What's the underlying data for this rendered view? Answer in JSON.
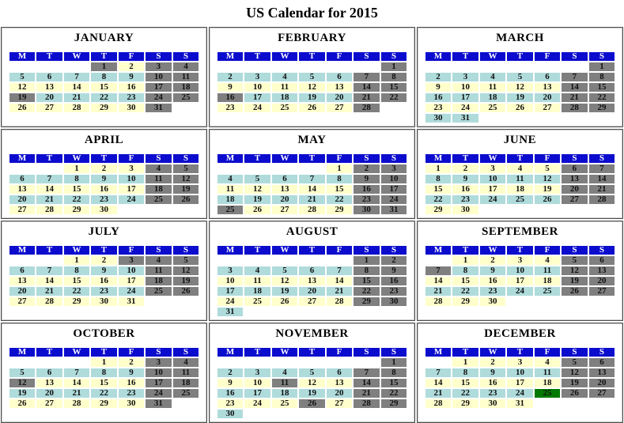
{
  "title": "US Calendar for 2015",
  "day_headers": [
    "M",
    "T",
    "W",
    "T",
    "F",
    "S",
    "S"
  ],
  "colors": {
    "weekday_header_bg": "#0c0cce",
    "weekday_header_text": "#ffffff",
    "week_row_pale_yellow": "#FFFFCC",
    "week_row_light_blue": "#AFDBDB",
    "weekend_holiday_bg": "#7F7F7F",
    "weekend_holiday_text": "#EDED12",
    "christmas_bg": "#007A00",
    "christmas_text": "#C03010",
    "day_text": "#111111"
  },
  "cell_styles": {
    "y": "pale-yellow-week",
    "b": "light-blue-week",
    "g": "weekend-or-holiday-gray",
    "x": "christmas-green",
    "e": "empty"
  },
  "months": [
    {
      "name": "JANUARY",
      "weeks": [
        [
          "",
          "",
          "",
          "1g",
          "2y",
          "3g",
          "4g"
        ],
        [
          "5b",
          "6b",
          "7b",
          "8b",
          "9b",
          "10g",
          "11g"
        ],
        [
          "12y",
          "13y",
          "14y",
          "15y",
          "16y",
          "17g",
          "18g"
        ],
        [
          "19g",
          "20b",
          "21b",
          "22b",
          "23b",
          "24g",
          "25g"
        ],
        [
          "26y",
          "27y",
          "28y",
          "29y",
          "30y",
          "31g",
          ""
        ]
      ]
    },
    {
      "name": "FEBRUARY",
      "weeks": [
        [
          "",
          "",
          "",
          "",
          "",
          "",
          "1g"
        ],
        [
          "2b",
          "3b",
          "4b",
          "5b",
          "6b",
          "7g",
          "8g"
        ],
        [
          "9y",
          "10y",
          "11y",
          "12y",
          "13y",
          "14g",
          "15g"
        ],
        [
          "16g",
          "17b",
          "18b",
          "19b",
          "20b",
          "21g",
          "22g"
        ],
        [
          "23y",
          "24y",
          "25y",
          "26y",
          "27y",
          "28g",
          ""
        ]
      ]
    },
    {
      "name": "MARCH",
      "weeks": [
        [
          "",
          "",
          "",
          "",
          "",
          "",
          "1g"
        ],
        [
          "2b",
          "3b",
          "4b",
          "5b",
          "6b",
          "7g",
          "8g"
        ],
        [
          "9y",
          "10y",
          "11y",
          "12y",
          "13y",
          "14g",
          "15g"
        ],
        [
          "16b",
          "17b",
          "18b",
          "19b",
          "20b",
          "21g",
          "22g"
        ],
        [
          "23y",
          "24y",
          "25y",
          "26y",
          "27y",
          "28g",
          "29g"
        ],
        [
          "30b",
          "31b",
          "",
          "",
          "",
          "",
          ""
        ]
      ]
    },
    {
      "name": "APRIL",
      "weeks": [
        [
          "",
          "",
          "1y",
          "2y",
          "3y",
          "4g",
          "5g"
        ],
        [
          "6b",
          "7b",
          "8b",
          "9b",
          "10b",
          "11g",
          "12g"
        ],
        [
          "13y",
          "14y",
          "15y",
          "16y",
          "17y",
          "18g",
          "19g"
        ],
        [
          "20b",
          "21b",
          "22b",
          "23b",
          "24b",
          "25g",
          "26g"
        ],
        [
          "27y",
          "28y",
          "29y",
          "30y",
          "",
          "",
          ""
        ]
      ]
    },
    {
      "name": "MAY",
      "weeks": [
        [
          "",
          "",
          "",
          "",
          "1y",
          "2g",
          "3g"
        ],
        [
          "4b",
          "5b",
          "6b",
          "7b",
          "8b",
          "9g",
          "10g"
        ],
        [
          "11y",
          "12y",
          "13y",
          "14y",
          "15y",
          "16g",
          "17g"
        ],
        [
          "18b",
          "19b",
          "20b",
          "21b",
          "22b",
          "23g",
          "24g"
        ],
        [
          "25g",
          "26y",
          "27y",
          "28y",
          "29y",
          "30g",
          "31g"
        ]
      ]
    },
    {
      "name": "JUNE",
      "weeks": [
        [
          "1y",
          "2y",
          "3y",
          "4y",
          "5y",
          "6g",
          "7g"
        ],
        [
          "8b",
          "9b",
          "10b",
          "11b",
          "12b",
          "13g",
          "14g"
        ],
        [
          "15y",
          "16y",
          "17y",
          "18y",
          "19y",
          "20g",
          "21g"
        ],
        [
          "22b",
          "23b",
          "24b",
          "25b",
          "26b",
          "27g",
          "28g"
        ],
        [
          "29y",
          "30y",
          "",
          "",
          "",
          "",
          ""
        ]
      ]
    },
    {
      "name": "JULY",
      "weeks": [
        [
          "",
          "",
          "1y",
          "2y",
          "3g",
          "4g",
          "5g"
        ],
        [
          "6b",
          "7b",
          "8b",
          "9b",
          "10b",
          "11g",
          "12g"
        ],
        [
          "13y",
          "14y",
          "15y",
          "16y",
          "17y",
          "18g",
          "19g"
        ],
        [
          "20b",
          "21b",
          "22b",
          "23b",
          "24b",
          "25g",
          "26g"
        ],
        [
          "27y",
          "28y",
          "29y",
          "30y",
          "31y",
          "",
          ""
        ]
      ]
    },
    {
      "name": "AUGUST",
      "weeks": [
        [
          "",
          "",
          "",
          "",
          "",
          "1g",
          "2g"
        ],
        [
          "3b",
          "4b",
          "5b",
          "6b",
          "7b",
          "8g",
          "9g"
        ],
        [
          "10y",
          "11y",
          "12y",
          "13y",
          "14y",
          "15g",
          "16g"
        ],
        [
          "17b",
          "18b",
          "19b",
          "20b",
          "21b",
          "22g",
          "23g"
        ],
        [
          "24y",
          "25y",
          "26y",
          "27y",
          "28y",
          "29g",
          "30g"
        ],
        [
          "31b",
          "",
          "",
          "",
          "",
          "",
          ""
        ]
      ]
    },
    {
      "name": "SEPTEMBER",
      "weeks": [
        [
          "",
          "1y",
          "2y",
          "3y",
          "4y",
          "5g",
          "6g"
        ],
        [
          "7g",
          "8b",
          "9b",
          "10b",
          "11b",
          "12g",
          "13g"
        ],
        [
          "14y",
          "15y",
          "16y",
          "17y",
          "18y",
          "19g",
          "20g"
        ],
        [
          "21b",
          "22b",
          "23b",
          "24b",
          "25b",
          "26g",
          "27g"
        ],
        [
          "28y",
          "29y",
          "30y",
          "",
          "",
          "",
          ""
        ]
      ]
    },
    {
      "name": "OCTOBER",
      "weeks": [
        [
          "",
          "",
          "",
          "1y",
          "2y",
          "3g",
          "4g"
        ],
        [
          "5b",
          "6b",
          "7b",
          "8b",
          "9b",
          "10g",
          "11g"
        ],
        [
          "12g",
          "13y",
          "14y",
          "15y",
          "16y",
          "17g",
          "18g"
        ],
        [
          "19b",
          "20b",
          "21b",
          "22b",
          "23b",
          "24g",
          "25g"
        ],
        [
          "26y",
          "27y",
          "28y",
          "29y",
          "30y",
          "31g",
          ""
        ]
      ]
    },
    {
      "name": "NOVEMBER",
      "weeks": [
        [
          "",
          "",
          "",
          "",
          "",
          "",
          "1g"
        ],
        [
          "2b",
          "3b",
          "4b",
          "5b",
          "6b",
          "7g",
          "8g"
        ],
        [
          "9y",
          "10y",
          "11g",
          "12y",
          "13y",
          "14g",
          "15g"
        ],
        [
          "16b",
          "17b",
          "18b",
          "19b",
          "20b",
          "21g",
          "22g"
        ],
        [
          "23y",
          "24y",
          "25y",
          "26g",
          "27y",
          "28g",
          "29g"
        ],
        [
          "30b",
          "",
          "",
          "",
          "",
          "",
          ""
        ]
      ]
    },
    {
      "name": "DECEMBER",
      "weeks": [
        [
          "",
          "1y",
          "2y",
          "3y",
          "4y",
          "5g",
          "6g"
        ],
        [
          "7b",
          "8b",
          "9b",
          "10b",
          "11b",
          "12g",
          "13g"
        ],
        [
          "14y",
          "15y",
          "16y",
          "17y",
          "18y",
          "19g",
          "20g"
        ],
        [
          "21b",
          "22b",
          "23b",
          "24b",
          "25x",
          "26g",
          "27g"
        ],
        [
          "28y",
          "29y",
          "30y",
          "31y",
          "",
          "",
          ""
        ]
      ]
    }
  ]
}
